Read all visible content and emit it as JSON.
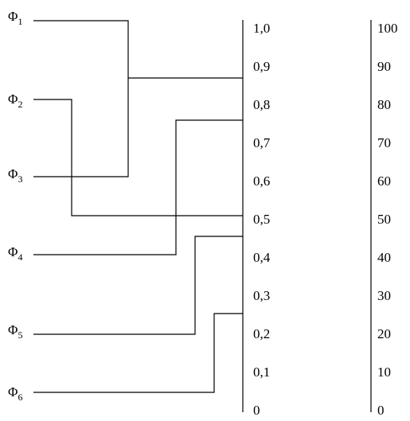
{
  "leaves": [
    {
      "base": "Φ",
      "sub": "1"
    },
    {
      "base": "Φ",
      "sub": "2"
    },
    {
      "base": "Φ",
      "sub": "3"
    },
    {
      "base": "Φ",
      "sub": "4"
    },
    {
      "base": "Φ",
      "sub": "5"
    },
    {
      "base": "Φ",
      "sub": "6"
    }
  ],
  "scale_left": {
    "ticks": [
      "1,0",
      "0,9",
      "0,8",
      "0,7",
      "0,6",
      "0,5",
      "0,4",
      "0,3",
      "0,2",
      "0,1",
      "0"
    ],
    "values": [
      1.0,
      0.9,
      0.8,
      0.7,
      0.6,
      0.5,
      0.4,
      0.3,
      0.2,
      0.1,
      0.0
    ]
  },
  "scale_right": {
    "ticks": [
      "100",
      "90",
      "80",
      "70",
      "60",
      "50",
      "40",
      "30",
      "20",
      "10",
      "0"
    ]
  },
  "merges": [
    {
      "members": [
        "Φ1",
        "Φ3"
      ],
      "level": 0.87
    },
    {
      "members": [
        "Φ4",
        "Φ5",
        "Φ6"
      ],
      "level": 0.76
    },
    {
      "members": [
        "Φ2",
        "Φ4",
        "Φ5",
        "Φ6"
      ],
      "level": 0.5
    },
    {
      "members": [
        "Φ5",
        "Φ6"
      ],
      "level": 0.45
    },
    {
      "members": [
        "Φ6"
      ],
      "level": 0.25
    },
    {
      "members": [
        "Φ1",
        "Φ3"
      ],
      "level": 0.6
    }
  ]
}
